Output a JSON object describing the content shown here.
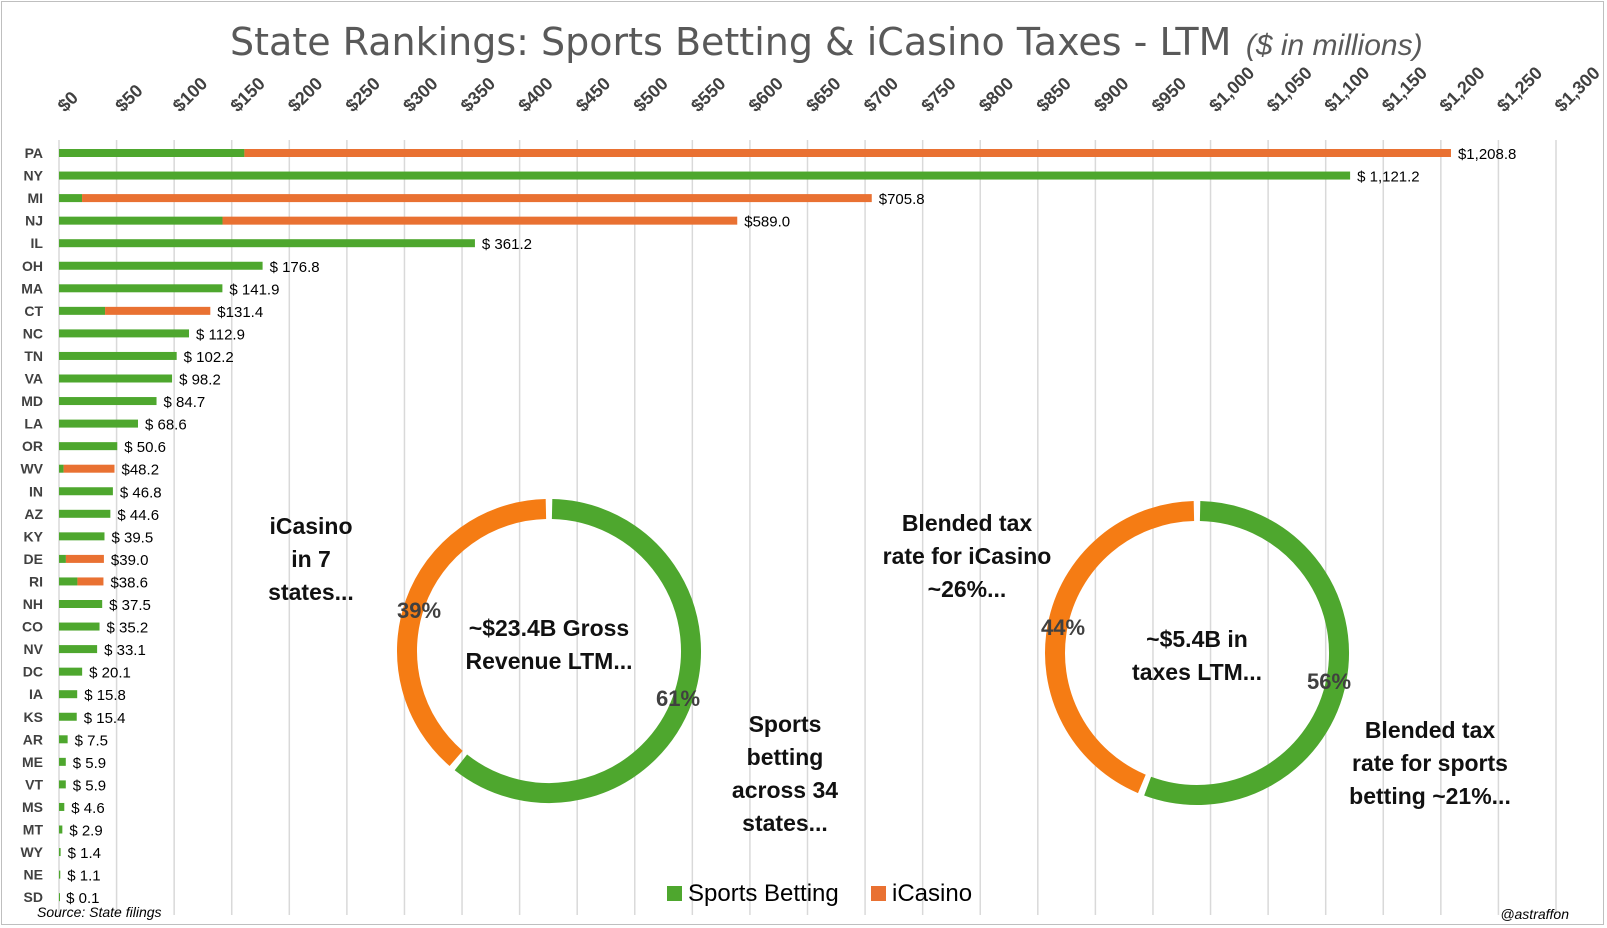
{
  "title": "State Rankings: Sports Betting & iCasino Taxes - LTM",
  "subtitle": "($ in millions)",
  "source": "Source: State filings",
  "credit": "@astraffon",
  "colors": {
    "sports": "#4ea72e",
    "icasino": "#e97132",
    "grid": "#d9d9d9",
    "donut_sports": "#4ea72e",
    "donut_icasino": "#f57c14"
  },
  "legend": [
    {
      "name": "Sports Betting",
      "color": "#4ea72e"
    },
    {
      "name": "iCasino",
      "color": "#e97132"
    }
  ],
  "chart_data": [
    {
      "type": "bar",
      "orientation": "horizontal",
      "stacked": true,
      "xlim": [
        0,
        1300
      ],
      "x_ticks": [
        "$0",
        "$50",
        "$100",
        "$150",
        "$200",
        "$250",
        "$300",
        "$350",
        "$400",
        "$450",
        "$500",
        "$550",
        "$600",
        "$650",
        "$700",
        "$750",
        "$800",
        "$850",
        "$900",
        "$950",
        "$1,000",
        "$1,050",
        "$1,100",
        "$1,150",
        "$1,200",
        "$1,250",
        "$1,300"
      ],
      "categories": [
        "PA",
        "NY",
        "MI",
        "NJ",
        "IL",
        "OH",
        "MA",
        "CT",
        "NC",
        "TN",
        "VA",
        "MD",
        "LA",
        "OR",
        "WV",
        "IN",
        "AZ",
        "KY",
        "DE",
        "RI",
        "NH",
        "CO",
        "NV",
        "DC",
        "IA",
        "KS",
        "AR",
        "ME",
        "VT",
        "MS",
        "MT",
        "WY",
        "NE",
        "SD"
      ],
      "series": [
        {
          "name": "Sports Betting",
          "values": [
            161,
            1121.2,
            20,
            142,
            361.2,
            176.8,
            141.9,
            40,
            112.9,
            102.2,
            98.2,
            84.7,
            68.6,
            50.6,
            4,
            46.8,
            44.6,
            39.5,
            6,
            16,
            37.5,
            35.2,
            33.1,
            20.1,
            15.8,
            15.4,
            7.5,
            5.9,
            5.9,
            4.6,
            2.9,
            1.4,
            1.1,
            0.1
          ]
        },
        {
          "name": "iCasino",
          "values": [
            1047.8,
            0,
            685.8,
            447,
            0,
            0,
            0,
            91.4,
            0,
            0,
            0,
            0,
            0,
            0,
            44.2,
            0,
            0,
            0,
            33,
            22.6,
            0,
            0,
            0,
            0,
            0,
            0,
            0,
            0,
            0,
            0,
            0,
            0,
            0,
            0
          ]
        }
      ],
      "labels": [
        "$1,208.8",
        "$ 1,121.2",
        "$705.8",
        "$589.0",
        "$ 361.2",
        "$ 176.8",
        "$ 141.9",
        "$131.4",
        "$ 112.9",
        "$ 102.2",
        "$ 98.2",
        "$ 84.7",
        "$ 68.6",
        "$ 50.6",
        "$48.2",
        "$ 46.8",
        "$ 44.6",
        "$ 39.5",
        "$39.0",
        "$38.6",
        "$ 37.5",
        "$ 35.2",
        "$ 33.1",
        "$ 20.1",
        "$ 15.8",
        "$ 15.4",
        "$ 7.5",
        "$ 5.9",
        "$ 5.9",
        "$ 4.6",
        "$ 2.9",
        "$ 1.4",
        "$ 1.1",
        "$ 0.1"
      ]
    },
    {
      "type": "pie",
      "variant": "donut",
      "center_lines": [
        "~$23.4B Gross",
        "Revenue LTM..."
      ],
      "slices": [
        {
          "name": "Sports Betting",
          "value": 61,
          "label": "61%"
        },
        {
          "name": "iCasino",
          "value": 39,
          "label": "39%"
        }
      ]
    },
    {
      "type": "pie",
      "variant": "donut",
      "center_lines": [
        "~$5.4B in",
        "taxes LTM..."
      ],
      "slices": [
        {
          "name": "Sports Betting",
          "value": 56,
          "label": "56%"
        },
        {
          "name": "iCasino",
          "value": 44,
          "label": "44%"
        }
      ]
    }
  ],
  "annotations": {
    "icasino_states": [
      "iCasino",
      "in 7",
      "states..."
    ],
    "sports_states": [
      "Sports",
      "betting",
      "across 34",
      "states..."
    ],
    "icasino_rate": [
      "Blended tax",
      "rate for iCasino",
      "~26%..."
    ],
    "sports_rate": [
      "Blended tax",
      "rate for sports",
      "betting ~21%..."
    ]
  }
}
